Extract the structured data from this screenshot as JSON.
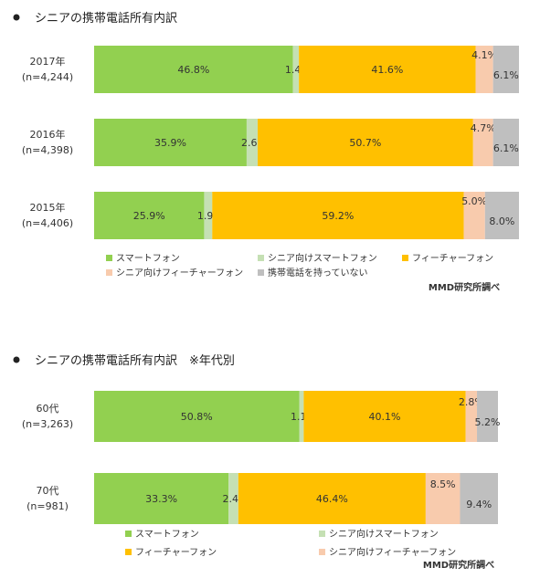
{
  "chart_data": [
    {
      "type": "bar",
      "orientation": "horizontal",
      "stacked": true,
      "percent": true,
      "title": "シニアの携帯電話所有内訳",
      "categories": [
        {
          "label": "2017年",
          "sample": "(n=4,244)"
        },
        {
          "label": "2016年",
          "sample": "(n=4,398)"
        },
        {
          "label": "2015年",
          "sample": "(n=4,406)"
        }
      ],
      "series": [
        {
          "name": "スマートフォン",
          "color": "#92d050",
          "values": [
            46.8,
            35.9,
            25.9
          ]
        },
        {
          "name": "シニア向けスマートフォン",
          "color": "#c5e0b4",
          "values": [
            1.4,
            2.6,
            1.9
          ]
        },
        {
          "name": "フィーチャーフォン",
          "color": "#ffc000",
          "values": [
            41.6,
            50.7,
            59.2
          ]
        },
        {
          "name": "シニア向けフィーチャーフォン",
          "color": "#f8cbad",
          "values": [
            4.1,
            4.7,
            5.0
          ]
        },
        {
          "name": "携帯電話を持っていない",
          "color": "#bfbfbf",
          "values": [
            6.1,
            6.1,
            8.0
          ]
        }
      ],
      "value_suffix": "%",
      "legend_position": "bottom",
      "source": "MMD研究所調べ"
    },
    {
      "type": "bar",
      "orientation": "horizontal",
      "stacked": true,
      "percent": true,
      "title": "シニアの携帯電話所有内訳　※年代別",
      "categories": [
        {
          "label": "60代",
          "sample": "(n=3,263)"
        },
        {
          "label": "70代",
          "sample": "(n=981)"
        }
      ],
      "series": [
        {
          "name": "スマートフォン",
          "color": "#92d050",
          "values": [
            50.8,
            33.3
          ]
        },
        {
          "name": "シニア向けスマートフォン",
          "color": "#c5e0b4",
          "values": [
            1.1,
            2.4
          ]
        },
        {
          "name": "フィーチャーフォン",
          "color": "#ffc000",
          "values": [
            40.1,
            46.4
          ]
        },
        {
          "name": "シニア向けフィーチャーフォン",
          "color": "#f8cbad",
          "values": [
            2.8,
            8.5
          ]
        },
        {
          "name": "携帯電話を持っていない",
          "color": "#bfbfbf",
          "values": [
            5.2,
            9.4
          ]
        }
      ],
      "legend_series": [
        "スマートフォン",
        "シニア向けスマートフォン",
        "フィーチャーフォン",
        "シニア向けフィーチャーフォン"
      ],
      "value_suffix": "%",
      "legend_position": "bottom",
      "source": "MMD研究所調べ"
    }
  ]
}
